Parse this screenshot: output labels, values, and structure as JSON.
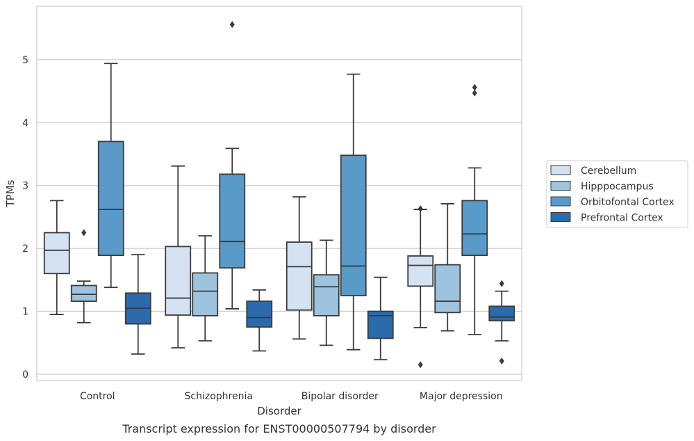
{
  "chart_data": {
    "type": "box",
    "caption": "Transcript expression for ENST00000507794 by disorder",
    "xlabel": "Disorder",
    "ylabel": "TPMs",
    "ylim": [
      -0.1,
      5.85
    ],
    "yticks": [
      0,
      1,
      2,
      3,
      4,
      5
    ],
    "grid": "horizontal",
    "legend_position": "right",
    "categories": [
      "Control",
      "Schizophrenia",
      "Bipolar disorder",
      "Major depression"
    ],
    "series": [
      {
        "name": "Cerebellum",
        "color": "#d4e2f1",
        "boxes": [
          {
            "whislo": 0.95,
            "q1": 1.6,
            "med": 1.97,
            "q3": 2.25,
            "whishi": 2.76,
            "fliers": []
          },
          {
            "whislo": 0.42,
            "q1": 0.94,
            "med": 1.21,
            "q3": 2.03,
            "whishi": 3.31,
            "fliers": []
          },
          {
            "whislo": 0.56,
            "q1": 1.02,
            "med": 1.71,
            "q3": 2.1,
            "whishi": 2.82,
            "fliers": []
          },
          {
            "whislo": 0.74,
            "q1": 1.4,
            "med": 1.73,
            "q3": 1.88,
            "whishi": 2.62,
            "fliers": [
              2.63,
              0.15
            ]
          }
        ]
      },
      {
        "name": "Hipppocampus",
        "color": "#9ec3de",
        "boxes": [
          {
            "whislo": 0.82,
            "q1": 1.16,
            "med": 1.27,
            "q3": 1.41,
            "whishi": 1.48,
            "fliers": [
              2.25
            ]
          },
          {
            "whislo": 0.53,
            "q1": 0.93,
            "med": 1.32,
            "q3": 1.61,
            "whishi": 2.2,
            "fliers": []
          },
          {
            "whislo": 0.46,
            "q1": 0.93,
            "med": 1.39,
            "q3": 1.58,
            "whishi": 2.13,
            "fliers": []
          },
          {
            "whislo": 0.69,
            "q1": 0.98,
            "med": 1.16,
            "q3": 1.74,
            "whishi": 2.71,
            "fliers": []
          }
        ]
      },
      {
        "name": "Orbitofontal Cortex",
        "color": "#5a9ac8",
        "boxes": [
          {
            "whislo": 1.38,
            "q1": 1.89,
            "med": 2.62,
            "q3": 3.7,
            "whishi": 4.94,
            "fliers": []
          },
          {
            "whislo": 1.04,
            "q1": 1.69,
            "med": 2.11,
            "q3": 3.18,
            "whishi": 3.59,
            "fliers": [
              5.56
            ]
          },
          {
            "whislo": 0.39,
            "q1": 1.25,
            "med": 1.72,
            "q3": 3.48,
            "whishi": 4.77,
            "fliers": []
          },
          {
            "whislo": 0.63,
            "q1": 1.89,
            "med": 2.23,
            "q3": 2.76,
            "whishi": 3.28,
            "fliers": [
              4.56,
              4.47
            ]
          }
        ]
      },
      {
        "name": "Prefrontal Cortex",
        "color": "#2c6aab",
        "boxes": [
          {
            "whislo": 0.32,
            "q1": 0.8,
            "med": 1.05,
            "q3": 1.29,
            "whishi": 1.9,
            "fliers": []
          },
          {
            "whislo": 0.37,
            "q1": 0.75,
            "med": 0.9,
            "q3": 1.16,
            "whishi": 1.34,
            "fliers": []
          },
          {
            "whislo": 0.23,
            "q1": 0.57,
            "med": 0.93,
            "q3": 1.0,
            "whishi": 1.54,
            "fliers": []
          },
          {
            "whislo": 0.53,
            "q1": 0.85,
            "med": 0.91,
            "q3": 1.08,
            "whishi": 1.32,
            "fliers": [
              1.44,
              0.21
            ]
          }
        ]
      }
    ]
  }
}
